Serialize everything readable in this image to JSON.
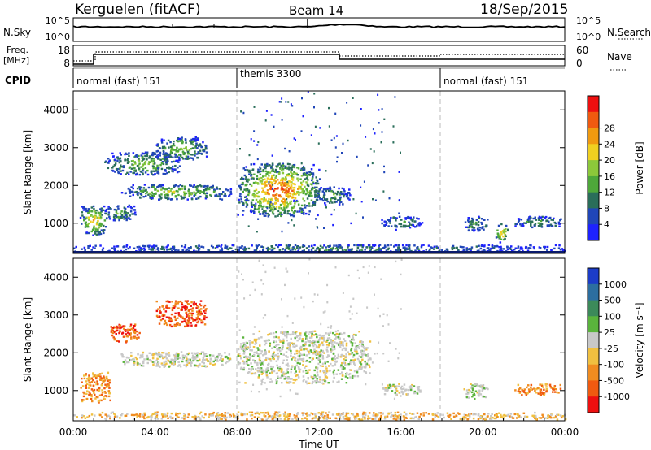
{
  "header": {
    "station": "Kerguelen (fitACF)",
    "beam": "Beam 14",
    "date": "18/Sep/2015"
  },
  "nsky_panel": {
    "left_label": "N.Sky",
    "right_label": "N.Search",
    "left_ticks": [
      "10^5",
      "10^0"
    ],
    "right_ticks": [
      "10^5",
      "10^0"
    ]
  },
  "freq_panel": {
    "left_label_line1": "Freq.",
    "left_label_line2": "[MHz]",
    "left_ticks": [
      "18",
      "8"
    ],
    "right_label": "Nave",
    "right_ticks": [
      "60",
      "0"
    ]
  },
  "cpid": {
    "label": "CPID",
    "segments": [
      {
        "text": "normal (fast) 151",
        "start_h": 0,
        "end_h": 8
      },
      {
        "text": "themis 3300",
        "start_h": 8,
        "end_h": 18
      },
      {
        "text": "normal (fast) 151",
        "start_h": 18,
        "end_h": 24
      }
    ]
  },
  "chart_data": [
    {
      "type": "heatmap",
      "title": "Power",
      "ylabel": "Slant Range [km]",
      "ylim": [
        200,
        4500
      ],
      "yticks": [
        "1000",
        "2000",
        "3000",
        "4000"
      ],
      "xlim": [
        "00:00",
        "24:00"
      ],
      "colorbar": {
        "label": "Power [dB]",
        "ticks": [
          "4",
          "8",
          "12",
          "16",
          "20",
          "24",
          "28"
        ],
        "colors": [
          "#1e22ff",
          "#2046b8",
          "#2a6e5a",
          "#4ea83a",
          "#8cc83a",
          "#f0d020",
          "#f09a10",
          "#f05a10",
          "#ee1010"
        ]
      },
      "regions": [
        {
          "t0": 0.3,
          "t1": 1.6,
          "r0": 700,
          "r1": 1500,
          "peak": 0.75
        },
        {
          "t0": 1.5,
          "t1": 3.0,
          "r0": 1100,
          "r1": 1500,
          "peak": 0.45
        },
        {
          "t0": 1.5,
          "t1": 5.2,
          "r0": 2300,
          "r1": 2900,
          "peak": 0.5
        },
        {
          "t0": 4.0,
          "t1": 6.5,
          "r0": 2700,
          "r1": 3300,
          "peak": 0.55
        },
        {
          "t0": 2.3,
          "t1": 7.7,
          "r0": 1650,
          "r1": 2050,
          "peak": 0.55
        },
        {
          "t0": 8.0,
          "t1": 12.0,
          "r0": 1200,
          "r1": 2600,
          "peak": 0.95
        },
        {
          "t0": 12.0,
          "t1": 13.5,
          "r0": 1500,
          "r1": 2000,
          "peak": 0.4
        },
        {
          "t0": 15.0,
          "t1": 17.0,
          "r0": 900,
          "r1": 1200,
          "peak": 0.35
        },
        {
          "t0": 19.0,
          "t1": 20.2,
          "r0": 800,
          "r1": 1200,
          "peak": 0.4
        },
        {
          "t0": 20.6,
          "t1": 21.2,
          "r0": 500,
          "r1": 1000,
          "peak": 0.8
        },
        {
          "t0": 21.5,
          "t1": 23.8,
          "r0": 900,
          "r1": 1200,
          "peak": 0.4
        },
        {
          "t0": 0.0,
          "t1": 24.0,
          "r0": 250,
          "r1": 450,
          "peak": 0.3
        }
      ]
    },
    {
      "type": "heatmap",
      "title": "Velocity",
      "ylabel": "Slant Range [km]",
      "ylim": [
        200,
        4500
      ],
      "yticks": [
        "1000",
        "2000",
        "3000",
        "4000"
      ],
      "xlim": [
        "00:00",
        "24:00"
      ],
      "xticks": [
        "00:00",
        "04:00",
        "08:00",
        "12:00",
        "16:00",
        "20:00",
        "00:00"
      ],
      "xlabel": "Time UT",
      "colorbar": {
        "label": "Velocity [m s⁻¹]",
        "ticks": [
          "1000",
          "500",
          "100",
          "25",
          "-25",
          "-100",
          "-500",
          "-1000"
        ],
        "colors": [
          "#1c3cc8",
          "#2c6ea0",
          "#3c8a5a",
          "#5ab43c",
          "#c8c8c8",
          "#f0c040",
          "#f08c20",
          "#f05a10",
          "#ee1010"
        ]
      },
      "regions": [
        {
          "t0": 0.3,
          "t1": 1.8,
          "r0": 700,
          "r1": 1500,
          "v": "orange"
        },
        {
          "t0": 1.8,
          "t1": 3.2,
          "r0": 2300,
          "r1": 2800,
          "v": "red"
        },
        {
          "t0": 4.0,
          "t1": 6.5,
          "r0": 2700,
          "r1": 3400,
          "v": "red"
        },
        {
          "t0": 2.3,
          "t1": 7.7,
          "r0": 1650,
          "r1": 2050,
          "v": "grey"
        },
        {
          "t0": 8.0,
          "t1": 14.5,
          "r0": 1200,
          "r1": 2600,
          "v": "grey"
        },
        {
          "t0": 15.0,
          "t1": 17.0,
          "r0": 900,
          "r1": 1200,
          "v": "grey"
        },
        {
          "t0": 19.0,
          "t1": 20.2,
          "r0": 800,
          "r1": 1200,
          "v": "grey"
        },
        {
          "t0": 21.5,
          "t1": 23.8,
          "r0": 900,
          "r1": 1200,
          "v": "orange"
        },
        {
          "t0": 0.0,
          "t1": 24.0,
          "r0": 250,
          "r1": 450,
          "v": "yellow"
        }
      ]
    }
  ]
}
